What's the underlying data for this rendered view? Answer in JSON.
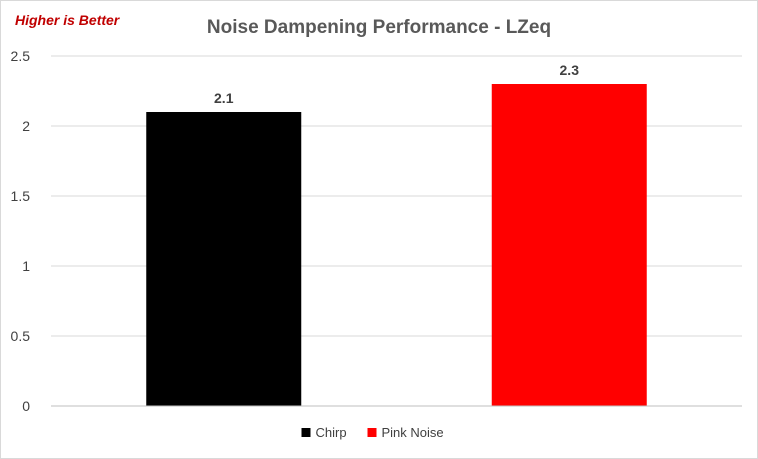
{
  "annotation": "Higher is Better",
  "chart_data": {
    "type": "bar",
    "title": "Noise Dampening Performance - LZeq",
    "xlabel": "",
    "ylabel": "",
    "ylim": [
      0,
      2.5
    ],
    "yticks": [
      "0",
      "0.5",
      "1",
      "1.5",
      "2",
      "2.5"
    ],
    "grid": true,
    "legend_position": "bottom",
    "series": [
      {
        "name": "Chirp",
        "values": [
          2.1
        ],
        "data_label": "2.1",
        "color": "#000000"
      },
      {
        "name": "Pink Noise",
        "values": [
          2.3
        ],
        "data_label": "2.3",
        "color": "#ff0000"
      }
    ]
  }
}
